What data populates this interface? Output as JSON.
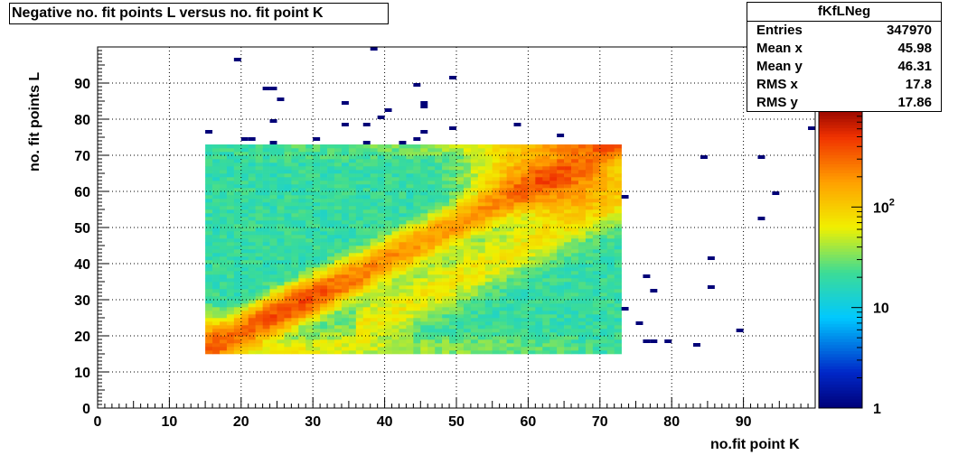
{
  "chart_data": {
    "type": "heatmap",
    "title": "Negative no. fit points L versus no. fit point K",
    "xlabel": "no.fit point K",
    "ylabel": "no. fit points  L",
    "xlim": [
      0,
      100
    ],
    "ylim": [
      0,
      100
    ],
    "x_ticks": [
      0,
      10,
      20,
      30,
      40,
      50,
      60,
      70,
      80,
      90
    ],
    "y_ticks": [
      0,
      10,
      20,
      30,
      40,
      50,
      60,
      70,
      80,
      90
    ],
    "z_scale": "log",
    "zlim": [
      1,
      1000
    ],
    "z_ticks": [
      {
        "value": 1,
        "label": "1"
      },
      {
        "value": 10,
        "label": "10"
      },
      {
        "value": 100,
        "label": "10^2"
      }
    ],
    "grid": true,
    "dense_region": {
      "x": [
        15,
        72
      ],
      "y": [
        15,
        72
      ]
    },
    "ridges": [
      {
        "name": "lower-diagonal",
        "from": [
          15,
          17
        ],
        "to": [
          70,
          70
        ],
        "peak_at": [
          27,
          28
        ]
      },
      {
        "name": "upper-band",
        "from": [
          15,
          72
        ],
        "to": [
          72,
          72
        ],
        "peak_at": [
          63,
          63
        ]
      }
    ],
    "sparse_points": [
      [
        19,
        96
      ],
      [
        38,
        99
      ],
      [
        15,
        76
      ],
      [
        23,
        88
      ],
      [
        24,
        88
      ],
      [
        25,
        85
      ],
      [
        24,
        79
      ],
      [
        20,
        74
      ],
      [
        21,
        74
      ],
      [
        24,
        73
      ],
      [
        30,
        74
      ],
      [
        34,
        84
      ],
      [
        34,
        78
      ],
      [
        37,
        78
      ],
      [
        37,
        73
      ],
      [
        39,
        80
      ],
      [
        40,
        82
      ],
      [
        42,
        73
      ],
      [
        44,
        89
      ],
      [
        44,
        74
      ],
      [
        45,
        76
      ],
      [
        45,
        83
      ],
      [
        45,
        84
      ],
      [
        49,
        91
      ],
      [
        49,
        77
      ],
      [
        58,
        78
      ],
      [
        64,
        75
      ],
      [
        73,
        58
      ],
      [
        73,
        27
      ],
      [
        75,
        23
      ],
      [
        76,
        36
      ],
      [
        77,
        32
      ],
      [
        76,
        18
      ],
      [
        77,
        18
      ],
      [
        79,
        18
      ],
      [
        83,
        17
      ],
      [
        84,
        69
      ],
      [
        85,
        41
      ],
      [
        85,
        33
      ],
      [
        89,
        21
      ],
      [
        92,
        69
      ],
      [
        92,
        52
      ],
      [
        94,
        59
      ],
      [
        99,
        77
      ]
    ],
    "stats": {
      "name": "fKfLNeg",
      "rows": [
        {
          "label": "Entries",
          "value": "347970"
        },
        {
          "label": "Mean x",
          "value": "45.98"
        },
        {
          "label": "Mean y",
          "value": "46.31"
        },
        {
          "label": "RMS x",
          "value": "17.8"
        },
        {
          "label": "RMS y",
          "value": "17.86"
        }
      ]
    }
  }
}
